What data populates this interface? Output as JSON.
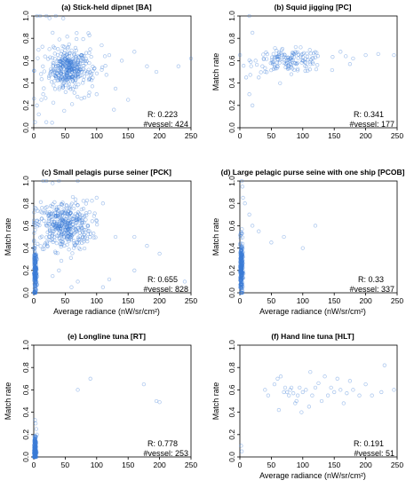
{
  "panels": [
    {
      "title": "(a)  Stick-held dipnet [BA]",
      "ylabel": "",
      "xlabel": "",
      "r_label": "R:  0.223",
      "vessel_label": "#vessel: 424",
      "xlim": [
        0,
        250
      ],
      "ylim": [
        0,
        1
      ],
      "xticks": [
        "0",
        "50",
        "100",
        "150",
        "200",
        "250"
      ],
      "yticks": [
        "0.0",
        "0.2",
        "0.4",
        "0.6",
        "0.8",
        "1.0"
      ],
      "clusters": [
        {
          "cx": 55,
          "cy": 0.53,
          "sx": 14,
          "sy": 0.08,
          "n": 260
        },
        {
          "cx": 60,
          "cy": 0.52,
          "sx": 30,
          "sy": 0.14,
          "n": 130
        }
      ],
      "extra_points": [
        [
          5,
          1.0
        ],
        [
          10,
          1.0
        ],
        [
          20,
          1.0
        ],
        [
          25,
          0.98
        ],
        [
          35,
          1.0
        ],
        [
          30,
          0.85
        ],
        [
          120,
          0.65
        ],
        [
          140,
          0.6
        ],
        [
          160,
          0.68
        ],
        [
          180,
          0.55
        ],
        [
          195,
          0.5
        ],
        [
          250,
          0.62
        ],
        [
          230,
          0.55
        ],
        [
          5,
          0.2
        ],
        [
          8,
          0.12
        ],
        [
          12,
          0.25
        ],
        [
          15,
          0.3
        ],
        [
          2,
          0.05
        ],
        [
          20,
          0.05
        ],
        [
          100,
          0.3
        ],
        [
          130,
          0.35
        ],
        [
          150,
          0.25
        ]
      ]
    },
    {
      "title": "(b)  Squid jigging [PC]",
      "ylabel": "Match rate",
      "xlabel": "",
      "r_label": "R:  0.341",
      "vessel_label": "#vessel: 177",
      "xlim": [
        0,
        250
      ],
      "ylim": [
        0,
        1
      ],
      "xticks": [
        "0",
        "50",
        "100",
        "150",
        "200",
        "250"
      ],
      "yticks": [
        "0.0",
        "0.2",
        "0.4",
        "0.6",
        "0.8",
        "1.0"
      ],
      "clusters": [
        {
          "cx": 80,
          "cy": 0.6,
          "sx": 28,
          "sy": 0.05,
          "n": 150
        }
      ],
      "extra_points": [
        [
          15,
          1.0
        ],
        [
          20,
          0.85
        ],
        [
          10,
          0.45
        ],
        [
          15,
          0.3
        ],
        [
          20,
          0.2
        ],
        [
          30,
          0.45
        ],
        [
          160,
          0.68
        ],
        [
          180,
          0.62
        ],
        [
          200,
          0.65
        ],
        [
          220,
          0.66
        ],
        [
          245,
          0.65
        ],
        [
          175,
          0.57
        ],
        [
          40,
          0.5
        ],
        [
          25,
          0.6
        ]
      ]
    },
    {
      "title": "(c)  Small pelagis purse seiner [PCK]",
      "ylabel": "Match rate",
      "xlabel": "Average radiance  (nW/sr/cm²)",
      "r_label": "R:  0.655",
      "vessel_label": "#vessel: 828",
      "xlim": [
        0,
        250
      ],
      "ylim": [
        0,
        1
      ],
      "xticks": [
        "0",
        "50",
        "100",
        "150",
        "200",
        "250"
      ],
      "yticks": [
        "0.0",
        "0.2",
        "0.4",
        "0.6",
        "0.8",
        "1.0"
      ],
      "clusters": [
        {
          "cx": 48,
          "cy": 0.6,
          "sx": 22,
          "sy": 0.11,
          "n": 420
        },
        {
          "cx": 2,
          "cy": 0.18,
          "sx": 1.2,
          "sy": 0.1,
          "n": 220
        }
      ],
      "extra_points": [
        [
          15,
          1.0
        ],
        [
          20,
          1.0
        ],
        [
          30,
          0.98
        ],
        [
          40,
          1.0
        ],
        [
          70,
          1.0
        ],
        [
          100,
          0.85
        ],
        [
          110,
          0.8
        ],
        [
          130,
          0.5
        ],
        [
          160,
          0.5
        ],
        [
          180,
          0.42
        ],
        [
          200,
          0.35
        ],
        [
          240,
          0.1
        ],
        [
          30,
          0.15
        ],
        [
          40,
          0.2
        ],
        [
          60,
          0.05
        ],
        [
          70,
          0.1
        ],
        [
          110,
          0.05
        ],
        [
          120,
          0.12
        ],
        [
          160,
          0.2
        ]
      ]
    },
    {
      "title": "(d)  Large pelagic purse seine with one ship [PCOB]",
      "ylabel": "Match rate",
      "xlabel": "Average radiance  (nW/sr/cm²)",
      "r_label": "R:  0.33",
      "vessel_label": "#vessel: 337",
      "xlim": [
        0,
        250
      ],
      "ylim": [
        0,
        1
      ],
      "xticks": [
        "0",
        "50",
        "100",
        "150",
        "200",
        "250"
      ],
      "yticks": [
        "0.0",
        "0.2",
        "0.4",
        "0.6",
        "0.8",
        "1.0"
      ],
      "clusters": [
        {
          "cx": 2,
          "cy": 0.22,
          "sx": 1.2,
          "sy": 0.12,
          "n": 280
        }
      ],
      "extra_points": [
        [
          3,
          1.0
        ],
        [
          4,
          0.95
        ],
        [
          5,
          0.85
        ],
        [
          8,
          0.8
        ],
        [
          15,
          0.7
        ],
        [
          20,
          0.6
        ],
        [
          30,
          0.55
        ],
        [
          50,
          0.45
        ],
        [
          70,
          0.5
        ],
        [
          100,
          0.4
        ],
        [
          120,
          0.6
        ]
      ]
    },
    {
      "title": "(e)  Longline tuna [RT]",
      "ylabel": "Match rate",
      "xlabel": "",
      "r_label": "R:  0.778",
      "vessel_label": "#vessel: 253",
      "xlim": [
        0,
        250
      ],
      "ylim": [
        0,
        1
      ],
      "xticks": [
        "0",
        "50",
        "100",
        "150",
        "200",
        "250"
      ],
      "yticks": [
        "0.0",
        "0.2",
        "0.4",
        "0.6",
        "0.8",
        "1.0"
      ],
      "clusters": [
        {
          "cx": 1.5,
          "cy": 0.06,
          "sx": 1.0,
          "sy": 0.06,
          "n": 200
        }
      ],
      "extra_points": [
        [
          3,
          0.3
        ],
        [
          4,
          0.25
        ],
        [
          2,
          0.33
        ],
        [
          5,
          0.2
        ],
        [
          70,
          0.6
        ],
        [
          90,
          0.7
        ],
        [
          175,
          0.65
        ],
        [
          195,
          0.5
        ],
        [
          200,
          0.49
        ]
      ]
    },
    {
      "title": "(f)  Hand line tuna [HLT]",
      "ylabel": "Match rate",
      "xlabel": "Average radiance  (nW/sr/cm²)",
      "r_label": "R:  0.191",
      "vessel_label": "#vessel: 51",
      "xlim": [
        0,
        250
      ],
      "ylim": [
        0,
        1
      ],
      "xticks": [
        "0",
        "50",
        "100",
        "150",
        "200",
        "250"
      ],
      "yticks": [
        "0.0",
        "0.2",
        "0.4",
        "0.6",
        "0.8",
        "1.0"
      ],
      "clusters": [],
      "extra_points": [
        [
          2,
          0.1
        ],
        [
          3,
          0.05
        ],
        [
          40,
          0.6
        ],
        [
          45,
          0.55
        ],
        [
          55,
          0.65
        ],
        [
          60,
          0.7
        ],
        [
          62,
          0.42
        ],
        [
          70,
          0.58
        ],
        [
          72,
          0.62
        ],
        [
          75,
          0.58
        ],
        [
          78,
          0.55
        ],
        [
          80,
          0.6
        ],
        [
          82,
          0.62
        ],
        [
          85,
          0.57
        ],
        [
          88,
          0.48
        ],
        [
          90,
          0.5
        ],
        [
          92,
          0.55
        ],
        [
          95,
          0.62
        ],
        [
          100,
          0.58
        ],
        [
          105,
          0.6
        ],
        [
          110,
          0.45
        ],
        [
          115,
          0.55
        ],
        [
          120,
          0.62
        ],
        [
          125,
          0.66
        ],
        [
          130,
          0.5
        ],
        [
          140,
          0.55
        ],
        [
          145,
          0.62
        ],
        [
          150,
          0.58
        ],
        [
          155,
          0.7
        ],
        [
          160,
          0.6
        ],
        [
          165,
          0.48
        ],
        [
          170,
          0.57
        ],
        [
          175,
          0.68
        ],
        [
          180,
          0.6
        ],
        [
          190,
          0.55
        ],
        [
          200,
          0.65
        ],
        [
          210,
          0.55
        ],
        [
          225,
          0.58
        ],
        [
          230,
          0.82
        ],
        [
          245,
          0.6
        ],
        [
          65,
          0.72
        ],
        [
          98,
          0.4
        ],
        [
          112,
          0.76
        ],
        [
          135,
          0.72
        ]
      ]
    }
  ],
  "colors": {
    "point_stroke": "#3b7dd8",
    "point_stroke_alpha": 0.45,
    "axis": "#000000"
  },
  "chart_data": [
    {
      "type": "scatter",
      "title": "(a)  Stick-held dipnet [BA]",
      "xlabel": "",
      "ylabel": "",
      "xlim": [
        0,
        250
      ],
      "ylim": [
        0,
        1
      ],
      "annotations": [
        "R:  0.223",
        "#vessel: 424"
      ],
      "series": [
        {
          "name": "",
          "description_points": "dense cloud centered near x=55, y=0.53"
        }
      ]
    },
    {
      "type": "scatter",
      "title": "(b)  Squid jigging [PC]",
      "xlabel": "",
      "ylabel": "Match rate",
      "xlim": [
        0,
        250
      ],
      "ylim": [
        0,
        1
      ],
      "annotations": [
        "R:  0.341",
        "#vessel: 177"
      ]
    },
    {
      "type": "scatter",
      "title": "(c)  Small pelagis purse seiner [PCK]",
      "xlabel": "Average radiance  (nW/sr/cm²)",
      "ylabel": "Match rate",
      "xlim": [
        0,
        250
      ],
      "ylim": [
        0,
        1
      ],
      "annotations": [
        "R:  0.655",
        "#vessel: 828"
      ]
    },
    {
      "type": "scatter",
      "title": "(d)  Large pelagic purse seine with one ship [PCOB]",
      "xlabel": "Average radiance  (nW/sr/cm²)",
      "ylabel": "Match rate",
      "xlim": [
        0,
        250
      ],
      "ylim": [
        0,
        1
      ],
      "annotations": [
        "R:  0.33",
        "#vessel: 337"
      ]
    },
    {
      "type": "scatter",
      "title": "(e)  Longline tuna [RT]",
      "xlabel": "",
      "ylabel": "Match rate",
      "xlim": [
        0,
        250
      ],
      "ylim": [
        0,
        1
      ],
      "annotations": [
        "R:  0.778",
        "#vessel: 253"
      ]
    },
    {
      "type": "scatter",
      "title": "(f)  Hand line tuna [HLT]",
      "xlabel": "Average radiance  (nW/sr/cm²)",
      "ylabel": "Match rate",
      "xlim": [
        0,
        250
      ],
      "ylim": [
        0,
        1
      ],
      "annotations": [
        "R:  0.191",
        "#vessel: 51"
      ]
    }
  ]
}
